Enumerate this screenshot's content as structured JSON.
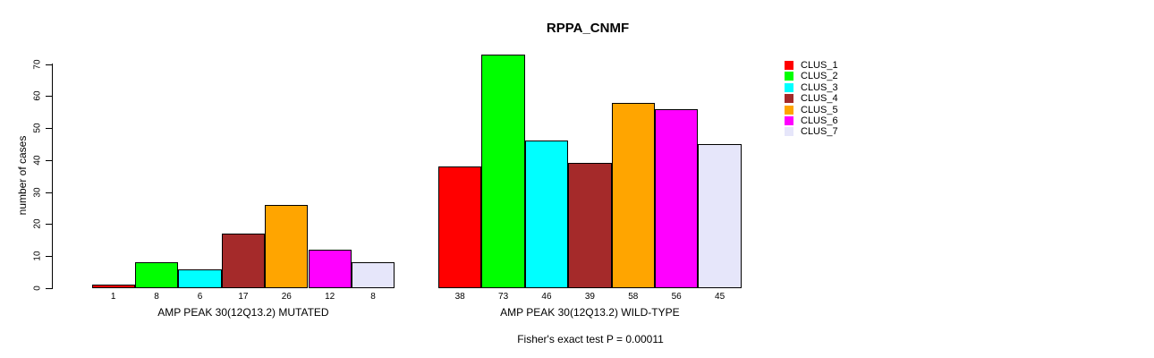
{
  "chart_data": {
    "type": "bar",
    "title": "RPPA_CNMF",
    "ylabel": "number of cases",
    "ylim": [
      0,
      70
    ],
    "yticks": [
      0,
      10,
      20,
      30,
      40,
      50,
      60,
      70
    ],
    "grid": false,
    "legend_position": "right",
    "series": [
      {
        "name": "CLUS_1",
        "color": "#FF0000"
      },
      {
        "name": "CLUS_2",
        "color": "#00FF00"
      },
      {
        "name": "CLUS_3",
        "color": "#00FFFF"
      },
      {
        "name": "CLUS_4",
        "color": "#A52A2A"
      },
      {
        "name": "CLUS_5",
        "color": "#FFA500"
      },
      {
        "name": "CLUS_6",
        "color": "#FF00FF"
      },
      {
        "name": "CLUS_7",
        "color": "#E6E6FA"
      }
    ],
    "groups": [
      {
        "label": "AMP PEAK 30(12Q13.2) MUTATED",
        "values": [
          1,
          8,
          6,
          17,
          26,
          12,
          8
        ]
      },
      {
        "label": "AMP PEAK 30(12Q13.2) WILD-TYPE",
        "values": [
          38,
          73,
          46,
          39,
          58,
          56,
          45
        ]
      }
    ],
    "footnote": "Fisher's exact test P = 0.00011"
  }
}
